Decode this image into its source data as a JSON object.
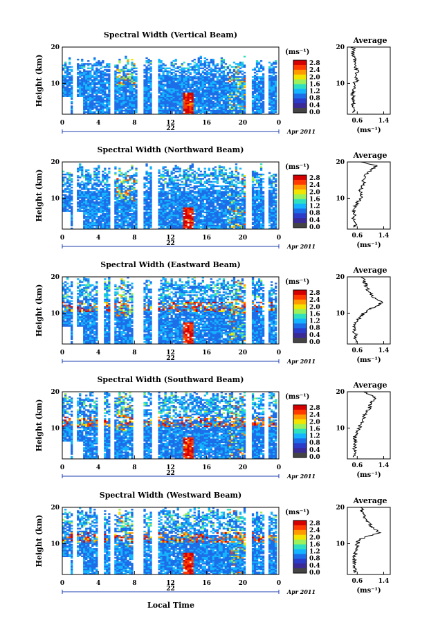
{
  "figure": {
    "xlabel": "Local Time",
    "date_label": "Apr 2011",
    "ylabel": "Height (km)",
    "avg_title": "Average",
    "unit": "(ms⁻¹)",
    "colorbar_ticks": [
      "2.8",
      "2.4",
      "2.0",
      "1.6",
      "1.2",
      "0.8",
      "0.4",
      "0.0"
    ],
    "colorbar_colors": [
      "#d40000",
      "#ff3a00",
      "#ff9a00",
      "#f2e400",
      "#9cf05a",
      "#2fe0c0",
      "#14b4ff",
      "#1c6ee8",
      "#2a3cc8",
      "#3a2a96",
      "#444444"
    ]
  },
  "chart_data": [
    {
      "type": "heatmap",
      "title": "Spectral Width (Vertical Beam)",
      "day_label": "22",
      "x_ticks": [
        "0",
        "4",
        "8",
        "12",
        "16",
        "20",
        "0"
      ],
      "y_ticks": [
        "20",
        "10"
      ],
      "xlim": [
        0,
        24
      ],
      "ylim": [
        1.5,
        20
      ],
      "avg_xticks": [
        "0.6",
        "1.4"
      ],
      "avg_xlim": [
        0.3,
        1.6
      ],
      "avg_profile": {
        "height_km": [
          2,
          3,
          4,
          5,
          6,
          7,
          8,
          9,
          10,
          11,
          12,
          13,
          14,
          15,
          16,
          17,
          18,
          19,
          20
        ],
        "value": [
          0.45,
          0.5,
          0.48,
          0.47,
          0.5,
          0.46,
          0.48,
          0.5,
          0.52,
          0.6,
          0.55,
          0.6,
          0.58,
          0.55,
          0.5,
          0.52,
          0.48,
          0.5,
          0.47
        ]
      }
    },
    {
      "type": "heatmap",
      "title": "Spectral Width (Northward Beam)",
      "day_label": "22",
      "x_ticks": [
        "0",
        "4",
        "8",
        "12",
        "16",
        "20",
        "0"
      ],
      "y_ticks": [
        "20",
        "10"
      ],
      "xlim": [
        0,
        24
      ],
      "ylim": [
        1.5,
        20
      ],
      "avg_xticks": [
        "0.6",
        "1.4"
      ],
      "avg_xlim": [
        0.3,
        1.6
      ],
      "avg_profile": {
        "height_km": [
          2,
          3,
          4,
          5,
          6,
          7,
          8,
          9,
          10,
          11,
          12,
          13,
          14,
          15,
          16,
          17,
          18,
          19,
          20
        ],
        "value": [
          0.5,
          0.55,
          0.48,
          0.5,
          0.52,
          0.5,
          0.55,
          0.62,
          0.7,
          0.75,
          0.68,
          0.72,
          0.8,
          0.78,
          0.85,
          0.9,
          1.05,
          1.2,
          0.7
        ]
      }
    },
    {
      "type": "heatmap",
      "title": "Spectral Width (Eastward Beam)",
      "day_label": "22",
      "x_ticks": [
        "0",
        "4",
        "8",
        "12",
        "16",
        "20",
        "0"
      ],
      "y_ticks": [
        "20",
        "10"
      ],
      "xlim": [
        0,
        24
      ],
      "ylim": [
        1.5,
        20
      ],
      "avg_xticks": [
        "0.6",
        "1.4"
      ],
      "avg_xlim": [
        0.3,
        1.6
      ],
      "avg_profile": {
        "height_km": [
          2,
          3,
          4,
          5,
          6,
          7,
          8,
          9,
          10,
          11,
          12,
          13,
          14,
          15,
          16,
          17,
          18,
          19,
          20
        ],
        "value": [
          0.55,
          0.5,
          0.55,
          0.5,
          0.52,
          0.55,
          0.6,
          0.7,
          0.8,
          0.95,
          1.2,
          1.35,
          1.15,
          1.05,
          0.95,
          0.9,
          0.85,
          0.8,
          0.75
        ]
      }
    },
    {
      "type": "heatmap",
      "title": "Spectral Width (Southward Beam)",
      "day_label": "22",
      "x_ticks": [
        "0",
        "4",
        "8",
        "12",
        "16",
        "20",
        "0"
      ],
      "y_ticks": [
        "20",
        "10"
      ],
      "xlim": [
        0,
        24
      ],
      "ylim": [
        1.5,
        20
      ],
      "avg_xticks": [
        "0.6",
        "1.4"
      ],
      "avg_xlim": [
        0.3,
        1.6
      ],
      "avg_profile": {
        "height_km": [
          2,
          3,
          4,
          5,
          6,
          7,
          8,
          9,
          10,
          11,
          12,
          13,
          14,
          15,
          16,
          17,
          18,
          19,
          20
        ],
        "value": [
          0.5,
          0.55,
          0.5,
          0.52,
          0.55,
          0.5,
          0.55,
          0.6,
          0.65,
          0.72,
          0.75,
          0.8,
          0.85,
          0.95,
          1.0,
          1.0,
          1.15,
          1.05,
          0.8
        ]
      }
    },
    {
      "type": "heatmap",
      "title": "Spectral Width (Westward Beam)",
      "day_label": "22",
      "x_ticks": [
        "0",
        "4",
        "8",
        "12",
        "16",
        "20",
        "0"
      ],
      "y_ticks": [
        "20",
        "10"
      ],
      "xlim": [
        0,
        24
      ],
      "ylim": [
        1.5,
        20
      ],
      "avg_xticks": [
        "0.6",
        "1.4"
      ],
      "avg_xlim": [
        0.3,
        1.6
      ],
      "avg_profile": {
        "height_km": [
          2,
          3,
          4,
          5,
          6,
          7,
          8,
          9,
          10,
          11,
          12,
          13,
          14,
          15,
          16,
          17,
          18,
          19,
          20
        ],
        "value": [
          0.5,
          0.55,
          0.5,
          0.52,
          0.5,
          0.55,
          0.55,
          0.58,
          0.6,
          0.65,
          0.9,
          1.3,
          1.1,
          1.0,
          0.95,
          0.85,
          0.8,
          0.75,
          0.7
        ]
      }
    }
  ]
}
